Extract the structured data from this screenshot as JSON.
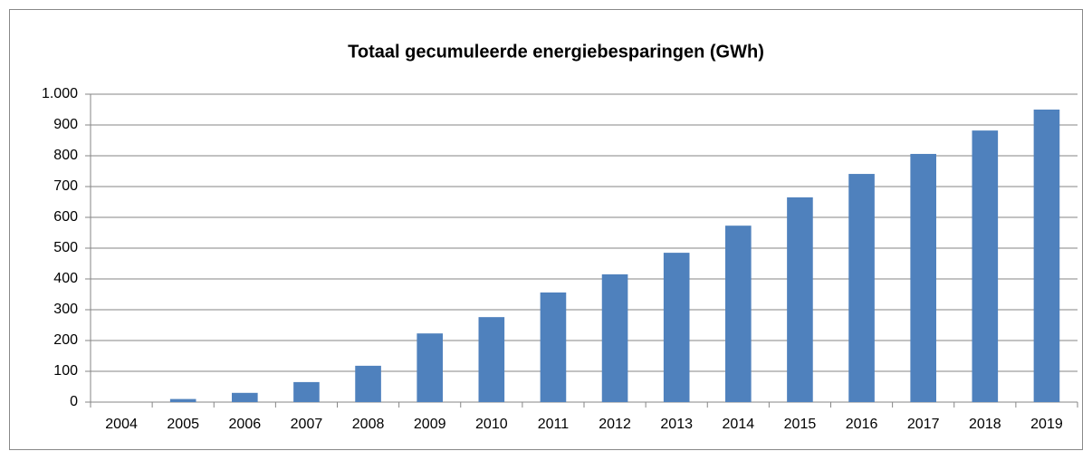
{
  "chart_data": {
    "type": "bar",
    "title": "Totaal gecumuleerde energiebesparingen (GWh)",
    "categories": [
      "2004",
      "2005",
      "2006",
      "2007",
      "2008",
      "2009",
      "2010",
      "2011",
      "2012",
      "2013",
      "2014",
      "2015",
      "2016",
      "2017",
      "2018",
      "2019"
    ],
    "values": [
      0,
      10,
      30,
      65,
      118,
      223,
      276,
      356,
      415,
      485,
      573,
      665,
      741,
      806,
      882,
      950
    ],
    "color": "#4f81bd",
    "ylim": [
      0,
      1000
    ],
    "yticks": [
      0,
      100,
      200,
      300,
      400,
      500,
      600,
      700,
      800,
      900,
      {
        "value": 1000,
        "label": "1.000"
      }
    ],
    "grid": true
  }
}
